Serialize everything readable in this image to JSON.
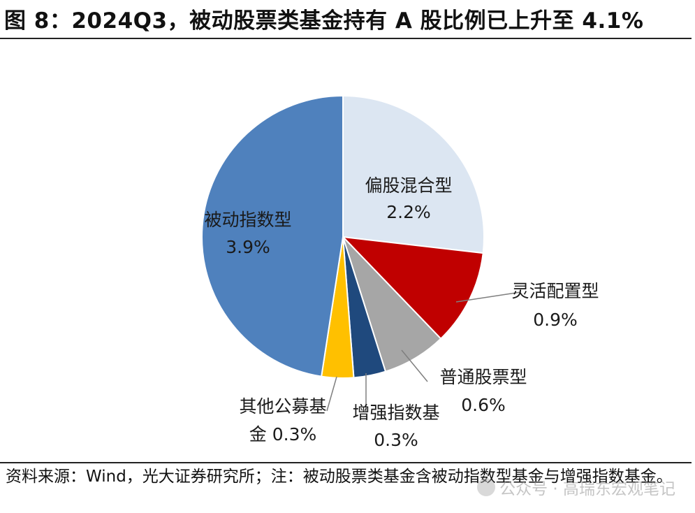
{
  "figure": {
    "title": "图 8：2024Q3，被动股票类基金持有 A 股比例已上升至 4.1%",
    "source_note": "资料来源：Wind，光大证券研究所；注：被动股票类基金含被动指数型基金与增强指数基金。",
    "watermark": "公众号 · 高瑞东宏观笔记"
  },
  "chart_data": {
    "type": "pie",
    "title": "图 8：2024Q3，被动股票类基金持有 A 股比例已上升至 4.1%",
    "unit": "%",
    "start_angle": "12 o'clock",
    "direction": "clockwise",
    "slices": [
      {
        "name": "偏股混合型",
        "value": 2.2,
        "label_value": "2.2%",
        "color": "#dce6f2"
      },
      {
        "name": "灵活配置型",
        "value": 0.9,
        "label_value": "0.9%",
        "color": "#c00000"
      },
      {
        "name": "普通股票型",
        "value": 0.6,
        "label_value": "0.6%",
        "color": "#a6a6a6"
      },
      {
        "name": "增强指数基",
        "value": 0.3,
        "label_value": "0.3%",
        "color": "#1f497d"
      },
      {
        "name": "其他公募基",
        "name_line2": "金",
        "value": 0.3,
        "label_value": "0.3%",
        "color": "#ffc000"
      },
      {
        "name": "被动指数型",
        "value": 3.9,
        "label_value": "3.9%",
        "color": "#4f81bd"
      }
    ]
  }
}
